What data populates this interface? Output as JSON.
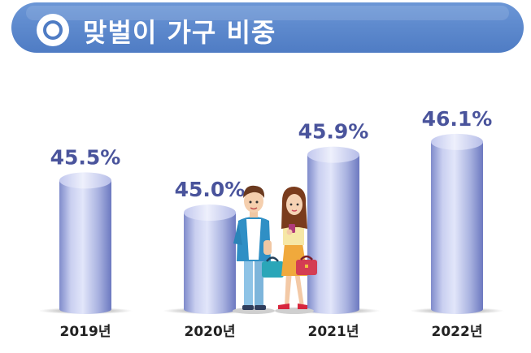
{
  "header": {
    "title": "맞벌이 가구 비중"
  },
  "chart_data": {
    "type": "bar",
    "title": "맞벌이 가구 비중",
    "categories": [
      "2019년",
      "2020년",
      "2021년",
      "2022년"
    ],
    "values": [
      45.5,
      45.0,
      45.9,
      46.1
    ],
    "value_labels": [
      "45.5%",
      "45.0%",
      "45.9%",
      "46.1%"
    ],
    "unit": "%",
    "xlabel": "",
    "ylabel": "",
    "ylim": [
      43.5,
      46.35
    ],
    "grid": false,
    "legend": "none",
    "colors": {
      "bar_light": "#d9ddf4",
      "bar_mid": "#a3acde",
      "bar_dark": "#7683c6",
      "label": "#4a549c",
      "title_bg": "#5b88ce"
    }
  }
}
